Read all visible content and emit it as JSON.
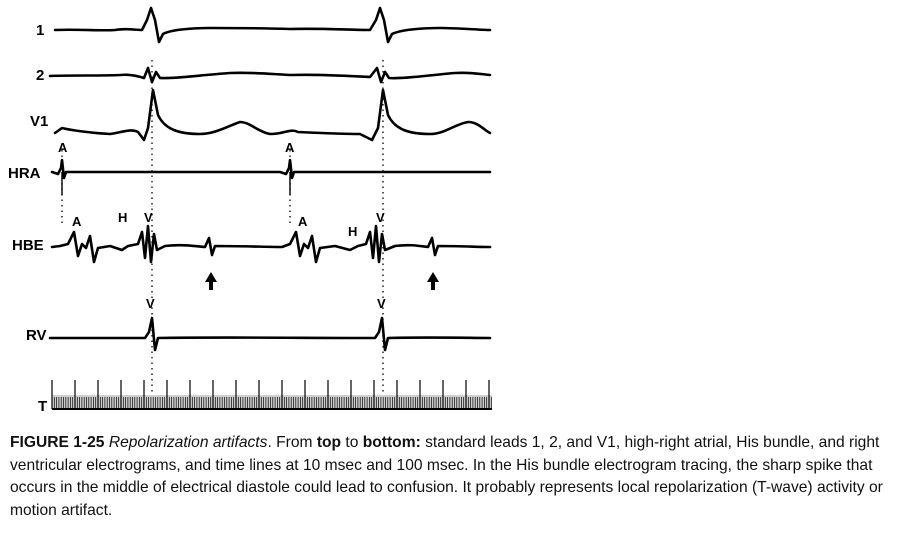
{
  "figure": {
    "leads": [
      {
        "key": "lead1",
        "label": "1"
      },
      {
        "key": "lead2",
        "label": "2"
      },
      {
        "key": "leadV1",
        "label": "V1"
      },
      {
        "key": "hra",
        "label": "HRA"
      },
      {
        "key": "hbe",
        "label": "HBE"
      },
      {
        "key": "rv",
        "label": "RV"
      },
      {
        "key": "time",
        "label": "T"
      }
    ],
    "markers": {
      "a": "A",
      "h": "H",
      "v": "V"
    }
  },
  "caption": {
    "figure_number": "FIGURE 1-25",
    "title": "Repolarization artifacts",
    "period": ".",
    "from": " From ",
    "top": "top",
    "to": " to ",
    "bottom": "bottom:",
    "body": " standard leads 1, 2, and V1, high-right atrial, His bundle, and right ventricular electrograms, and time lines at 10 msec and 100 msec. In the His bundle electrogram tracing, the sharp spike that occurs in the middle of electrical diastole could lead to confusion. It probably represents local repolarization (T-wave) activity or motion artifact."
  }
}
